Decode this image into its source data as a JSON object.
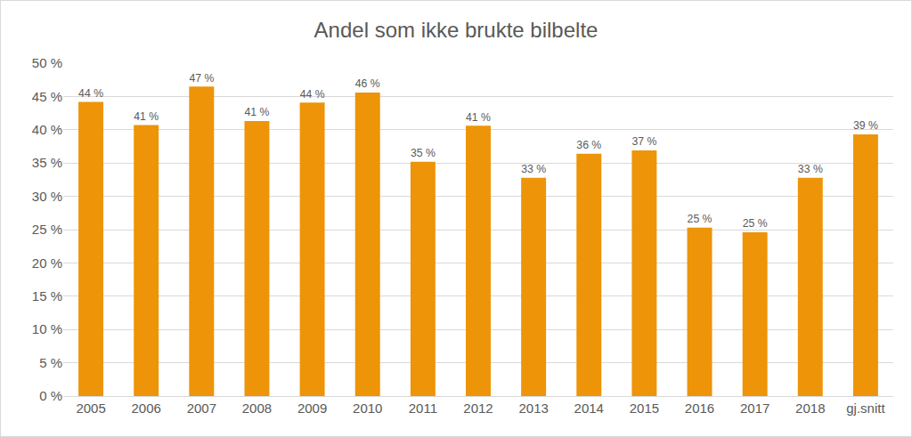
{
  "chart_data": {
    "type": "bar",
    "title": "Andel som ikke brukte bilbelte",
    "categories": [
      "2005",
      "2006",
      "2007",
      "2008",
      "2009",
      "2010",
      "2011",
      "2012",
      "2013",
      "2014",
      "2015",
      "2016",
      "2017",
      "2018",
      "gj.snitt"
    ],
    "values": [
      44.2,
      40.7,
      46.5,
      41.3,
      44.1,
      45.6,
      35.2,
      40.6,
      32.8,
      36.4,
      36.9,
      25.3,
      24.6,
      32.8,
      39.3
    ],
    "value_labels": [
      "44 %",
      "41 %",
      "47 %",
      "41 %",
      "44 %",
      "46 %",
      "35 %",
      "41 %",
      "33 %",
      "36 %",
      "37 %",
      "25 %",
      "25 %",
      "33 %",
      "39 %"
    ],
    "color": "#ed9408",
    "ylim": [
      0,
      50
    ],
    "yticks": [
      {
        "value": 0,
        "label": "0 %"
      },
      {
        "value": 5,
        "label": "5 %"
      },
      {
        "value": 10,
        "label": "10 %"
      },
      {
        "value": 15,
        "label": "15 %"
      },
      {
        "value": 20,
        "label": "20 %"
      },
      {
        "value": 25,
        "label": "25 %"
      },
      {
        "value": 30,
        "label": "30 %"
      },
      {
        "value": 35,
        "label": "35 %"
      },
      {
        "value": 40,
        "label": "40 %"
      },
      {
        "value": 45,
        "label": "45 %"
      },
      {
        "value": 50,
        "label": "50 %"
      }
    ],
    "grid": true,
    "data_labels": true
  }
}
